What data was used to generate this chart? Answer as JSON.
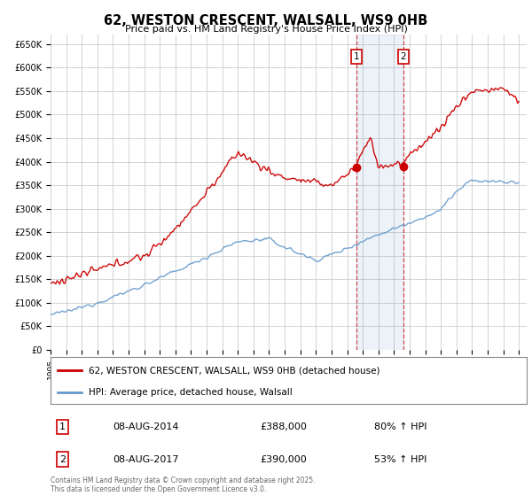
{
  "title": "62, WESTON CRESCENT, WALSALL, WS9 0HB",
  "subtitle": "Price paid vs. HM Land Registry's House Price Index (HPI)",
  "ylabel_ticks": [
    "£0",
    "£50K",
    "£100K",
    "£150K",
    "£200K",
    "£250K",
    "£300K",
    "£350K",
    "£400K",
    "£450K",
    "£500K",
    "£550K",
    "£600K",
    "£650K"
  ],
  "ytick_values": [
    0,
    50000,
    100000,
    150000,
    200000,
    250000,
    300000,
    350000,
    400000,
    450000,
    500000,
    550000,
    600000,
    650000
  ],
  "xlim_start": 1995.0,
  "xlim_end": 2025.5,
  "ylim_min": 0,
  "ylim_max": 670000,
  "legend_label_red": "62, WESTON CRESCENT, WALSALL, WS9 0HB (detached house)",
  "legend_label_blue": "HPI: Average price, detached house, Walsall",
  "transaction1_date": "08-AUG-2014",
  "transaction1_price": "£388,000",
  "transaction1_hpi": "80% ↑ HPI",
  "transaction1_year": 2014.6,
  "transaction1_value": 388000,
  "transaction2_date": "08-AUG-2017",
  "transaction2_price": "£390,000",
  "transaction2_hpi": "53% ↑ HPI",
  "transaction2_year": 2017.6,
  "transaction2_value": 390000,
  "red_color": "#cc0000",
  "blue_color": "#6699cc",
  "background_color": "#ffffff",
  "grid_color": "#cccccc",
  "footer_text": "Contains HM Land Registry data © Crown copyright and database right 2025.\nThis data is licensed under the Open Government Licence v3.0."
}
